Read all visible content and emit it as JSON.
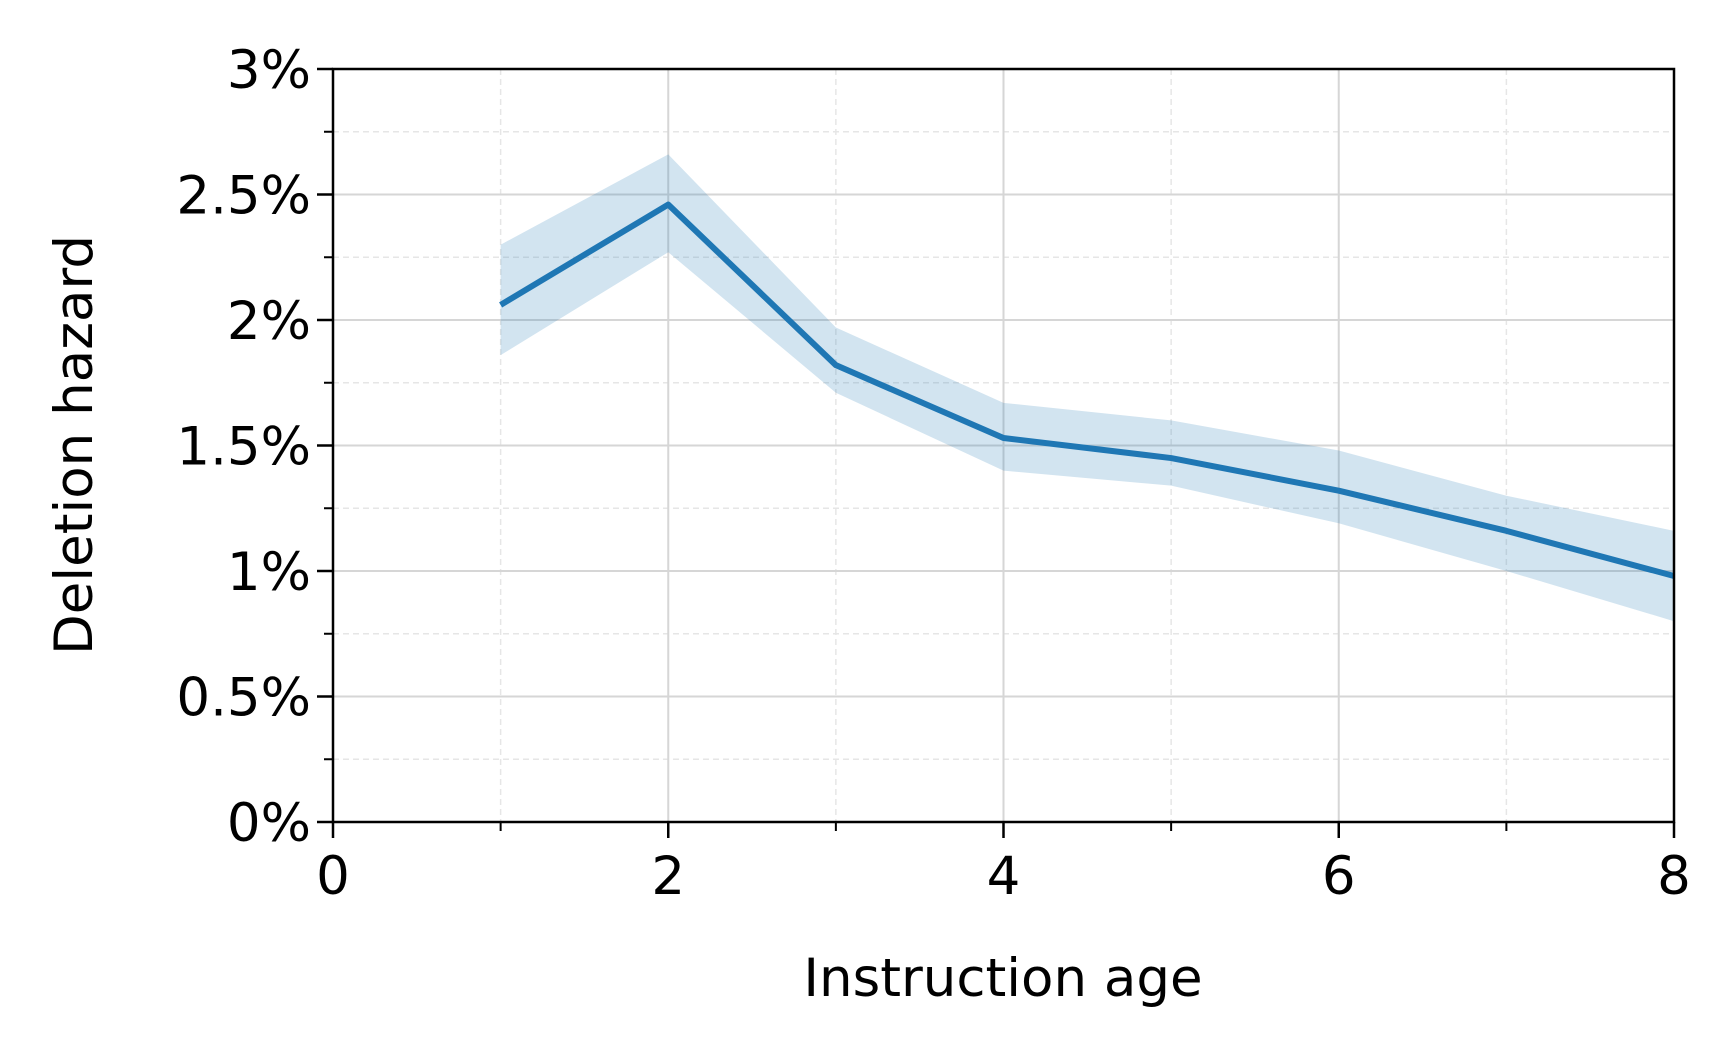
{
  "chart_data": {
    "type": "line",
    "xlabel": "Instruction age",
    "ylabel": "Deletion hazard",
    "x": [
      1,
      2,
      3,
      4,
      5,
      6,
      7,
      8
    ],
    "series": [
      {
        "color": "#1f77b4",
        "band_color": "#1f77b4",
        "values": [
          2.06,
          2.46,
          1.82,
          1.53,
          1.45,
          1.32,
          1.16,
          0.98
        ],
        "lower": [
          1.86,
          2.27,
          1.71,
          1.4,
          1.34,
          1.19,
          1.0,
          0.8
        ],
        "upper": [
          2.3,
          2.66,
          1.97,
          1.67,
          1.6,
          1.48,
          1.3,
          1.16
        ]
      }
    ],
    "xlim": [
      0,
      8
    ],
    "xticks": [
      0,
      2,
      4,
      6,
      8
    ],
    "xminor": [
      1,
      3,
      5,
      7
    ],
    "ylim": [
      0,
      3
    ],
    "yticks": [
      {
        "value": 0,
        "label": "0%"
      },
      {
        "value": 0.5,
        "label": "0.5%"
      },
      {
        "value": 1,
        "label": "1%"
      },
      {
        "value": 1.5,
        "label": "1.5%"
      },
      {
        "value": 2,
        "label": "2%"
      },
      {
        "value": 2.5,
        "label": "2.5%"
      },
      {
        "value": 3,
        "label": "3%"
      }
    ],
    "yminor": [
      0.25,
      0.75,
      1.25,
      1.75,
      2.25,
      2.75
    ],
    "grid": true
  }
}
